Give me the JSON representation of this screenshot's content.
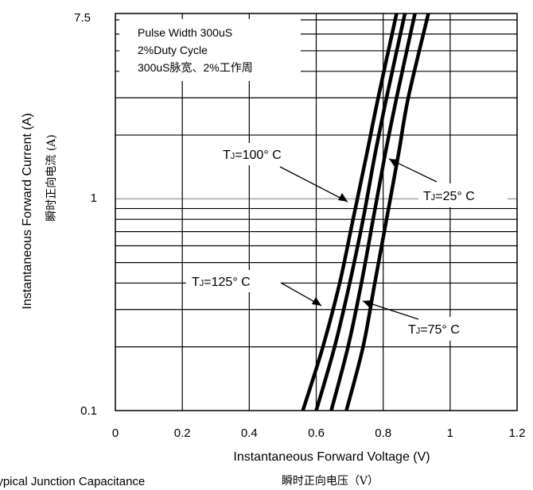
{
  "chart_data": {
    "type": "line",
    "title": "",
    "xlabel": "Instantaneous Forward Voltage (V)",
    "xlabel_cn": "瞬时正向电压（V）",
    "ylabel": "Instantaneous Forward Current (A)",
    "ylabel_cn": "瞬时正向电流 (A)",
    "xlim": [
      0,
      1.2
    ],
    "ylim": [
      0.1,
      7.5
    ],
    "yscale": "log",
    "x_ticks": [
      "0",
      "0.2",
      "0.4",
      "0.6",
      "0.8",
      "1",
      "1.2"
    ],
    "y_ticks": [
      "0.1",
      "1",
      "7.5"
    ],
    "grid": true,
    "notes": [
      "Pulse Width 300uS",
      "2%Duty Cycle",
      "300uS脉宽、2%工作周"
    ],
    "series": [
      {
        "name": "TJ=125°C",
        "label_main": "T",
        "label_sub": "J",
        "label_rest": "=125° C",
        "points": [
          [
            0.56,
            0.1
          ],
          [
            0.62,
            0.2
          ],
          [
            0.67,
            0.4
          ],
          [
            0.71,
            0.8
          ],
          [
            0.75,
            1.6
          ],
          [
            0.785,
            3.0
          ],
          [
            0.84,
            7.5
          ]
        ]
      },
      {
        "name": "TJ=100°C",
        "label_main": "T",
        "label_sub": "J",
        "label_rest": "=100° C",
        "points": [
          [
            0.6,
            0.1
          ],
          [
            0.655,
            0.2
          ],
          [
            0.7,
            0.4
          ],
          [
            0.74,
            0.8
          ],
          [
            0.775,
            1.6
          ],
          [
            0.81,
            3.0
          ],
          [
            0.865,
            7.5
          ]
        ]
      },
      {
        "name": "TJ=75°C",
        "label_main": "T",
        "label_sub": "J",
        "label_rest": "=75° C",
        "points": [
          [
            0.645,
            0.1
          ],
          [
            0.695,
            0.2
          ],
          [
            0.735,
            0.4
          ],
          [
            0.77,
            0.8
          ],
          [
            0.805,
            1.6
          ],
          [
            0.84,
            3.0
          ],
          [
            0.895,
            7.5
          ]
        ]
      },
      {
        "name": "TJ=25°C",
        "label_main": "T",
        "label_sub": "J",
        "label_rest": "=25° C",
        "points": [
          [
            0.69,
            0.1
          ],
          [
            0.74,
            0.2
          ],
          [
            0.775,
            0.4
          ],
          [
            0.81,
            0.8
          ],
          [
            0.845,
            1.6
          ],
          [
            0.875,
            3.0
          ],
          [
            0.935,
            7.5
          ]
        ]
      }
    ],
    "colors": {
      "curve": "#000000",
      "grid": "#000000",
      "highlight_grid": "#a6a6a6"
    }
  },
  "caption": "Typical Junction Capacitance"
}
